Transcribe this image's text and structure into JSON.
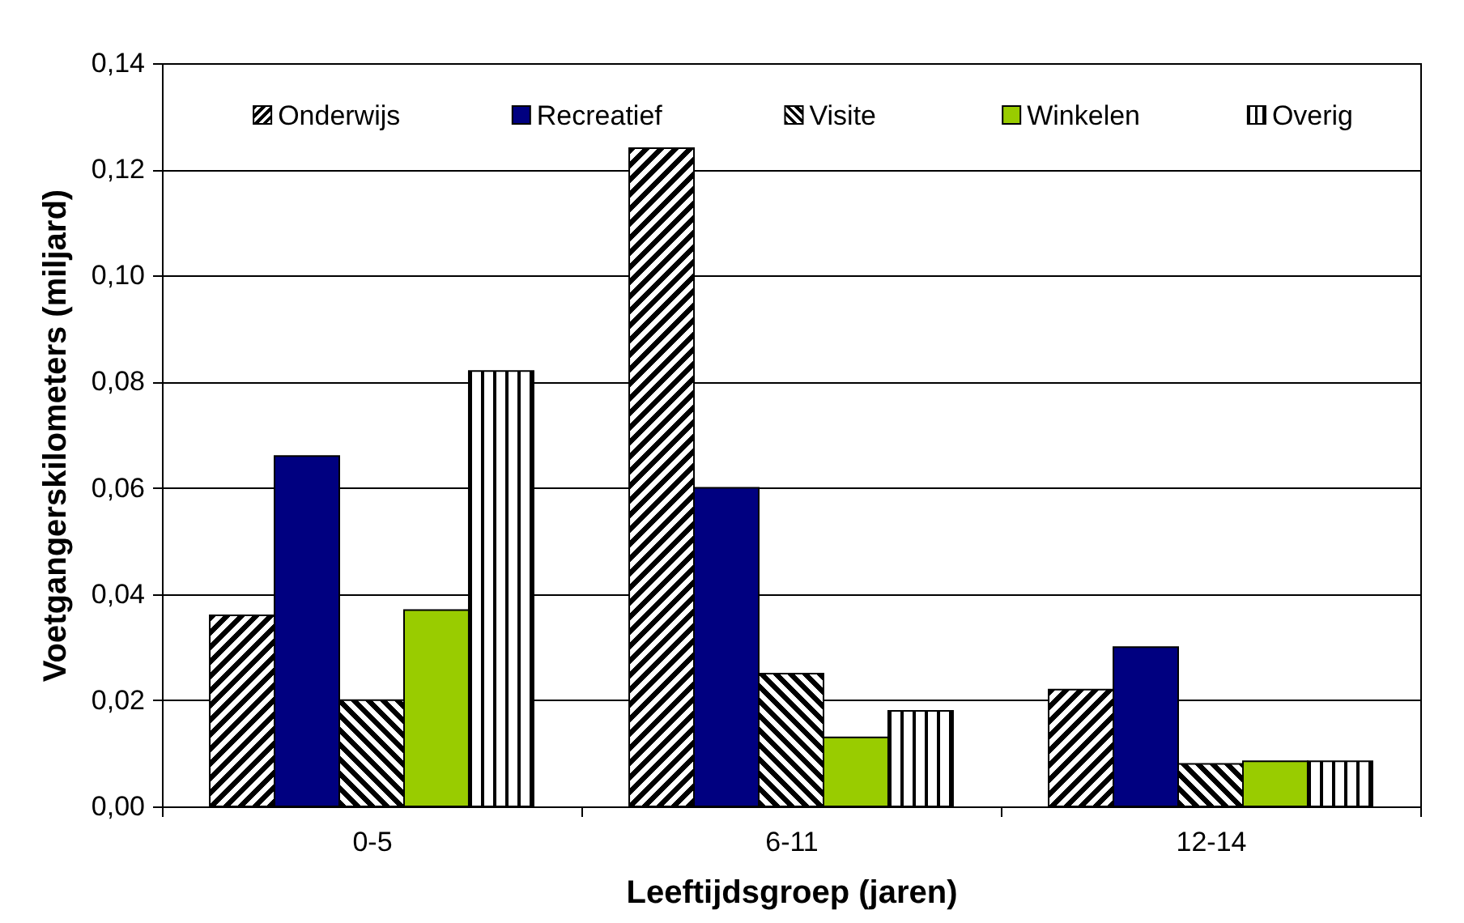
{
  "chart_data": {
    "type": "bar",
    "xlabel": "Leeftijdsgroep (jaren)",
    "ylabel": "Voetgangerskilometers (miljard)",
    "categories": [
      "0-5",
      "6-11",
      "12-14"
    ],
    "series": [
      {
        "name": "Onderwijs",
        "color": "#000000",
        "values": [
          0.036,
          0.124,
          0.022
        ]
      },
      {
        "name": "Recreatief",
        "color": "#000080",
        "values": [
          0.066,
          0.06,
          0.03
        ]
      },
      {
        "name": "Visite",
        "color": "#000000",
        "values": [
          0.02,
          0.025,
          0.008
        ]
      },
      {
        "name": "Winkelen",
        "color": "#99cc00",
        "values": [
          0.037,
          0.013,
          0.0085
        ]
      },
      {
        "name": "Overig",
        "color": "#000000",
        "values": [
          0.082,
          0.018,
          0.0085
        ]
      }
    ],
    "ylim": [
      0,
      0.14
    ],
    "yticks": [
      {
        "value": 0,
        "label": "0,00"
      },
      {
        "value": 0.02,
        "label": "0,02"
      },
      {
        "value": 0.04,
        "label": "0,04"
      },
      {
        "value": 0.06,
        "label": "0,06"
      },
      {
        "value": 0.08,
        "label": "0,08"
      },
      {
        "value": 0.1,
        "label": "0,10"
      },
      {
        "value": 0.12,
        "label": "0,12"
      },
      {
        "value": 0.14,
        "label": "0,14"
      }
    ],
    "grid": "y",
    "legend": "top"
  }
}
